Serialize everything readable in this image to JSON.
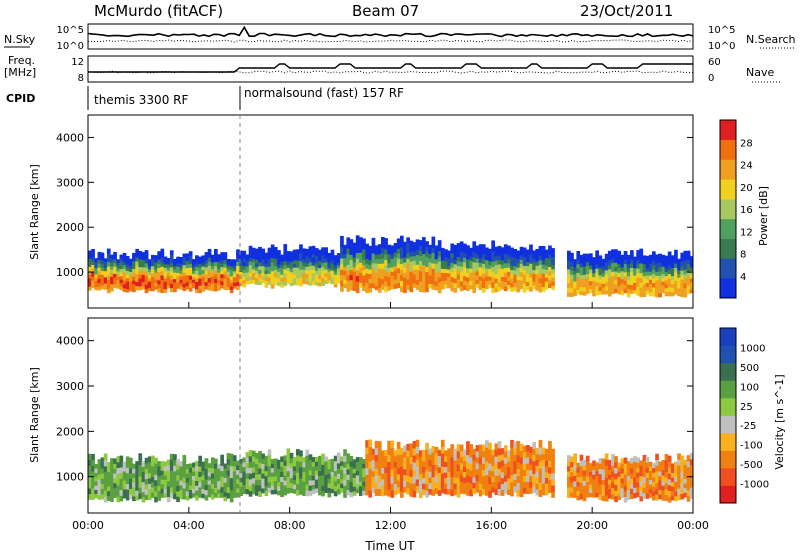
{
  "header": {
    "station": "McMurdo (fitACF)",
    "beam": "Beam 07",
    "date": "23/Oct/2011"
  },
  "strip_labels": {
    "nsky": "N.Sky",
    "nsearch": "N.Search",
    "freq": "Freq.",
    "freq_unit": "[MHz]",
    "nave": "Nave",
    "cpid": "CPID"
  },
  "strip_ticks": {
    "noise_top": "10^5",
    "noise_bottom": "10^0",
    "noise_top_right": "10^5",
    "noise_bottom_right": "10^0",
    "freq_high": "12",
    "freq_low": "8",
    "nave_high": "60",
    "nave_low": "0"
  },
  "cpid_segments": [
    {
      "label": "themis 3300 RF",
      "start_hour": 0,
      "end_hour": 6
    },
    {
      "label": "normalsound (fast) 157 RF",
      "start_hour": 6,
      "end_hour": 24
    }
  ],
  "colors": {
    "power": [
      "#1030e0",
      "#2050b0",
      "#3a7a50",
      "#50a060",
      "#a8c860",
      "#f0d020",
      "#f0a020",
      "#f07010",
      "#e02020"
    ],
    "velocity": [
      "#e02020",
      "#f05020",
      "#f08010",
      "#f8b020",
      "#c0c0c0",
      "#8cc840",
      "#5aa040",
      "#3a7050",
      "#2050b0",
      "#1a40c0"
    ]
  },
  "chart_data": [
    {
      "type": "heatmap",
      "name": "power-panel",
      "ylabel": "Slant Range [km]",
      "xlabel": "Time UT",
      "xlim": [
        0,
        24
      ],
      "ylim": [
        200,
        4500
      ],
      "x_ticks": [
        "00:00",
        "04:00",
        "08:00",
        "12:00",
        "16:00",
        "20:00",
        "00:00"
      ],
      "y_ticks": [
        "1000",
        "2000",
        "3000",
        "4000"
      ],
      "colorbar_label": "Power [dB]",
      "colorbar_ticks": [
        "4",
        "8",
        "12",
        "16",
        "20",
        "24",
        "28"
      ],
      "bands": [
        {
          "x": [
            0,
            6
          ],
          "range_low": 600,
          "range_high": 1400,
          "peak_power": 28
        },
        {
          "x": [
            6,
            10
          ],
          "range_low": 700,
          "range_high": 1500,
          "peak_power": 20
        },
        {
          "x": [
            10,
            14
          ],
          "range_low": 600,
          "range_high": 1700,
          "peak_power": 26
        },
        {
          "x": [
            14,
            18.5
          ],
          "range_low": 600,
          "range_high": 1600,
          "peak_power": 24
        },
        {
          "x": [
            19,
            24
          ],
          "range_low": 500,
          "range_high": 1400,
          "peak_power": 24
        }
      ]
    },
    {
      "type": "heatmap",
      "name": "velocity-panel",
      "ylabel": "Slant Range [km]",
      "xlabel": "Time UT",
      "xlim": [
        0,
        24
      ],
      "ylim": [
        200,
        4500
      ],
      "x_ticks": [
        "00:00",
        "04:00",
        "08:00",
        "12:00",
        "16:00",
        "20:00",
        "00:00"
      ],
      "y_ticks": [
        "1000",
        "2000",
        "3000",
        "4000"
      ],
      "colorbar_label": "Velocity [m s^-1]",
      "colorbar_ticks": [
        "1000",
        "500",
        "100",
        "25",
        "-25",
        "-100",
        "-500",
        "-1000"
      ],
      "bands": [
        {
          "x": [
            0,
            6
          ],
          "range_low": 500,
          "range_high": 1400,
          "velocity": 100
        },
        {
          "x": [
            6,
            11
          ],
          "range_low": 600,
          "range_high": 1500,
          "velocity": 300
        },
        {
          "x": [
            11,
            18.5
          ],
          "range_low": 600,
          "range_high": 1700,
          "velocity": -300
        },
        {
          "x": [
            19,
            24
          ],
          "range_low": 500,
          "range_high": 1400,
          "velocity": -300
        }
      ]
    }
  ],
  "time_label": "Time UT"
}
